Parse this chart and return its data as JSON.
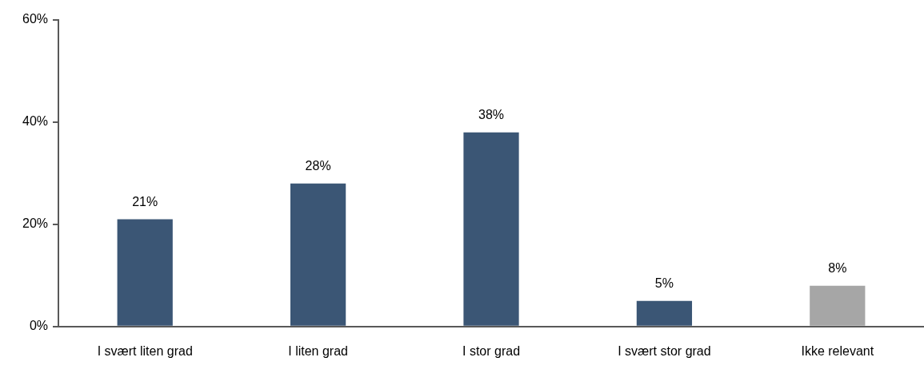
{
  "chart_data": {
    "type": "bar",
    "categories": [
      "I svært liten grad",
      "I liten grad",
      "I stor grad",
      "I svært stor grad",
      "Ikke relevant"
    ],
    "values": [
      21,
      28,
      38,
      5,
      8
    ],
    "value_labels": [
      "21%",
      "28%",
      "38%",
      "5%",
      "8%"
    ],
    "colors": [
      "#3b5675",
      "#3b5675",
      "#3b5675",
      "#3b5675",
      "#a6a6a6"
    ],
    "ylim": [
      0,
      60
    ],
    "yticks": [
      {
        "value": 0,
        "label": "0%"
      },
      {
        "value": 20,
        "label": "20%"
      },
      {
        "value": 40,
        "label": "40%"
      },
      {
        "value": 60,
        "label": "60%"
      }
    ],
    "grid": false,
    "legend": false
  }
}
